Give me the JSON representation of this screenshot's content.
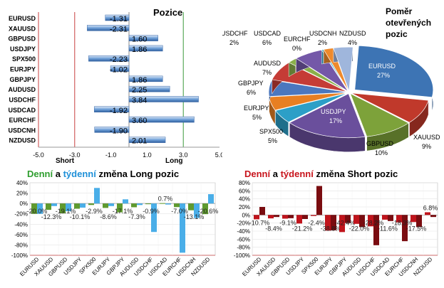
{
  "colors": {
    "long_bar": "#6fa0d8",
    "long_weekly": "#4aaee8",
    "long_daily": "#5f9a2e",
    "short_daily": "#c0141c",
    "short_weekly": "#7a0c10",
    "green_title": "#2f9e2f",
    "red_title": "#c8141c",
    "blue_title": "#1e90d8"
  },
  "chart_data": [
    {
      "type": "bar",
      "orientation": "horizontal",
      "title": "Pozice",
      "categories": [
        "EURUSD",
        "XAUUSD",
        "GBPUSD",
        "USDJPY",
        "SPX500",
        "EURJPY",
        "GBPJPY",
        "AUDUSD",
        "USDCHF",
        "USDCAD",
        "EURCHF",
        "USDCNH",
        "NZDUSD"
      ],
      "values": [
        -1.31,
        -2.31,
        1.6,
        1.86,
        -2.23,
        -1.02,
        1.86,
        2.25,
        3.84,
        -1.92,
        3.6,
        -1.9,
        2.01
      ],
      "value_labels": [
        "-1.31",
        "-2.31",
        "1.60",
        "1.86",
        "-2.23",
        "-1.02",
        "1.86",
        "2.25",
        "3.84",
        "-1.92",
        "3.60",
        "-1.90",
        "2.01"
      ],
      "xlim": [
        -5,
        5
      ],
      "ticks": [
        "-5.0",
        "-3.0",
        "-1.0",
        "1.0",
        "3.0",
        "5.0"
      ],
      "short_label": "Short",
      "long_label": "Long"
    },
    {
      "type": "pie",
      "title_lines": [
        "Poměr",
        "otevřených",
        "pozic"
      ],
      "slices": [
        {
          "name": "EURUSD",
          "pct": 27,
          "label": "27%",
          "color": "#3d74b4"
        },
        {
          "name": "XAUUSD",
          "pct": 9,
          "label": "9%",
          "color": "#c0392b"
        },
        {
          "name": "GBPUSD",
          "pct": 10,
          "label": "10%",
          "color": "#7da23a"
        },
        {
          "name": "USDJPY",
          "pct": 17,
          "label": "17%",
          "color": "#6a4f9c"
        },
        {
          "name": "SPX500",
          "pct": 5,
          "label": "5%",
          "color": "#2c9fc7"
        },
        {
          "name": "EURJPY",
          "pct": 5,
          "label": "5%",
          "color": "#e87f22"
        },
        {
          "name": "GBPJPY",
          "pct": 6,
          "label": "6%",
          "color": "#4b77be"
        },
        {
          "name": "AUDUSD",
          "pct": 7,
          "label": "7%",
          "color": "#c53c36"
        },
        {
          "name": "USDCHF",
          "pct": 2,
          "label": "2%",
          "color": "#8ab04a"
        },
        {
          "name": "USDCAD",
          "pct": 6,
          "label": "6%",
          "color": "#7458a8"
        },
        {
          "name": "EURCHF",
          "pct": 0,
          "label": "0%",
          "color": "#2aa6c9"
        },
        {
          "name": "USDCNH",
          "pct": 2,
          "label": "2%",
          "color": "#ee8a2c"
        },
        {
          "name": "NZDUSD",
          "pct": 4,
          "label": "4%",
          "color": "#9fb6dc"
        }
      ]
    },
    {
      "type": "bar",
      "title_parts": [
        "Denní",
        " a ",
        "týdenní",
        " změna Long pozic"
      ],
      "categories": [
        "EURUSD",
        "XAUUSD",
        "GBPUSD",
        "USDJPY",
        "SPX500",
        "EURJPY",
        "GBPJPY",
        "AUDUSD",
        "USDCHF",
        "USDCAD",
        "EURCHF",
        "USDCNH",
        "NZDUSD"
      ],
      "series": [
        {
          "values": [
            -20.0,
            -12.3,
            -19.1,
            -10.1,
            -2.9,
            -8.6,
            -17.1,
            -7.3,
            -0.9,
            0.7,
            -7.0,
            -13.1,
            -20.6
          ]
        },
        {
          "values": [
            -20,
            -5,
            -15,
            -8,
            30,
            -5,
            8,
            -3,
            -55,
            -2,
            -95,
            -28,
            18
          ]
        }
      ],
      "value_labels": [
        "-20.0%",
        "-12.3%",
        "-19.1%",
        "-10.1%",
        "-2.9%",
        "-8.6%",
        "-17.1%",
        "-7.3%",
        "-0.9%",
        "0.7%",
        "-7.0%",
        "-13.1%",
        "-20.6%"
      ],
      "ylim": [
        -100,
        40
      ],
      "yticks": [
        "40%",
        "20%",
        "0%",
        "-20%",
        "-40%",
        "-60%",
        "-80%",
        "-100%"
      ]
    },
    {
      "type": "bar",
      "title_parts": [
        "Denní",
        " a ",
        "týdenní",
        " změna Short pozic"
      ],
      "categories": [
        "EURUSD",
        "XAUUSD",
        "GBPUSD",
        "USDJPY",
        "SPX500",
        "EURJPY",
        "GBPJPY",
        "AUDUSD",
        "USDCHF",
        "USDCAD",
        "EURCHF",
        "USDCNH",
        "NZDUSD"
      ],
      "series": [
        {
          "values": [
            -10.7,
            -8.4,
            -9.1,
            -21.2,
            -2.4,
            -38.8,
            -42.4,
            -22.0,
            -28.2,
            -11.6,
            -18.3,
            -17.5,
            6.8
          ]
        },
        {
          "values": [
            20,
            -5,
            -8,
            -10,
            72,
            -38,
            -20,
            -30,
            -75,
            -15,
            -65,
            -30,
            -5
          ]
        }
      ],
      "value_labels": [
        "-10.7%",
        "-8.4%",
        "-9.1%",
        "-21.2%",
        "-2.4%",
        "-38.8%",
        "-42.4%",
        "-22.0%",
        "-28.2%",
        "-11.6%",
        "-18.3%",
        "-17.5%",
        "6.8%"
      ],
      "ylim": [
        -100,
        80
      ],
      "yticks": [
        "80%",
        "60%",
        "40%",
        "20%",
        "0%",
        "-20%",
        "-40%",
        "-60%",
        "-80%",
        "-100%"
      ]
    }
  ]
}
